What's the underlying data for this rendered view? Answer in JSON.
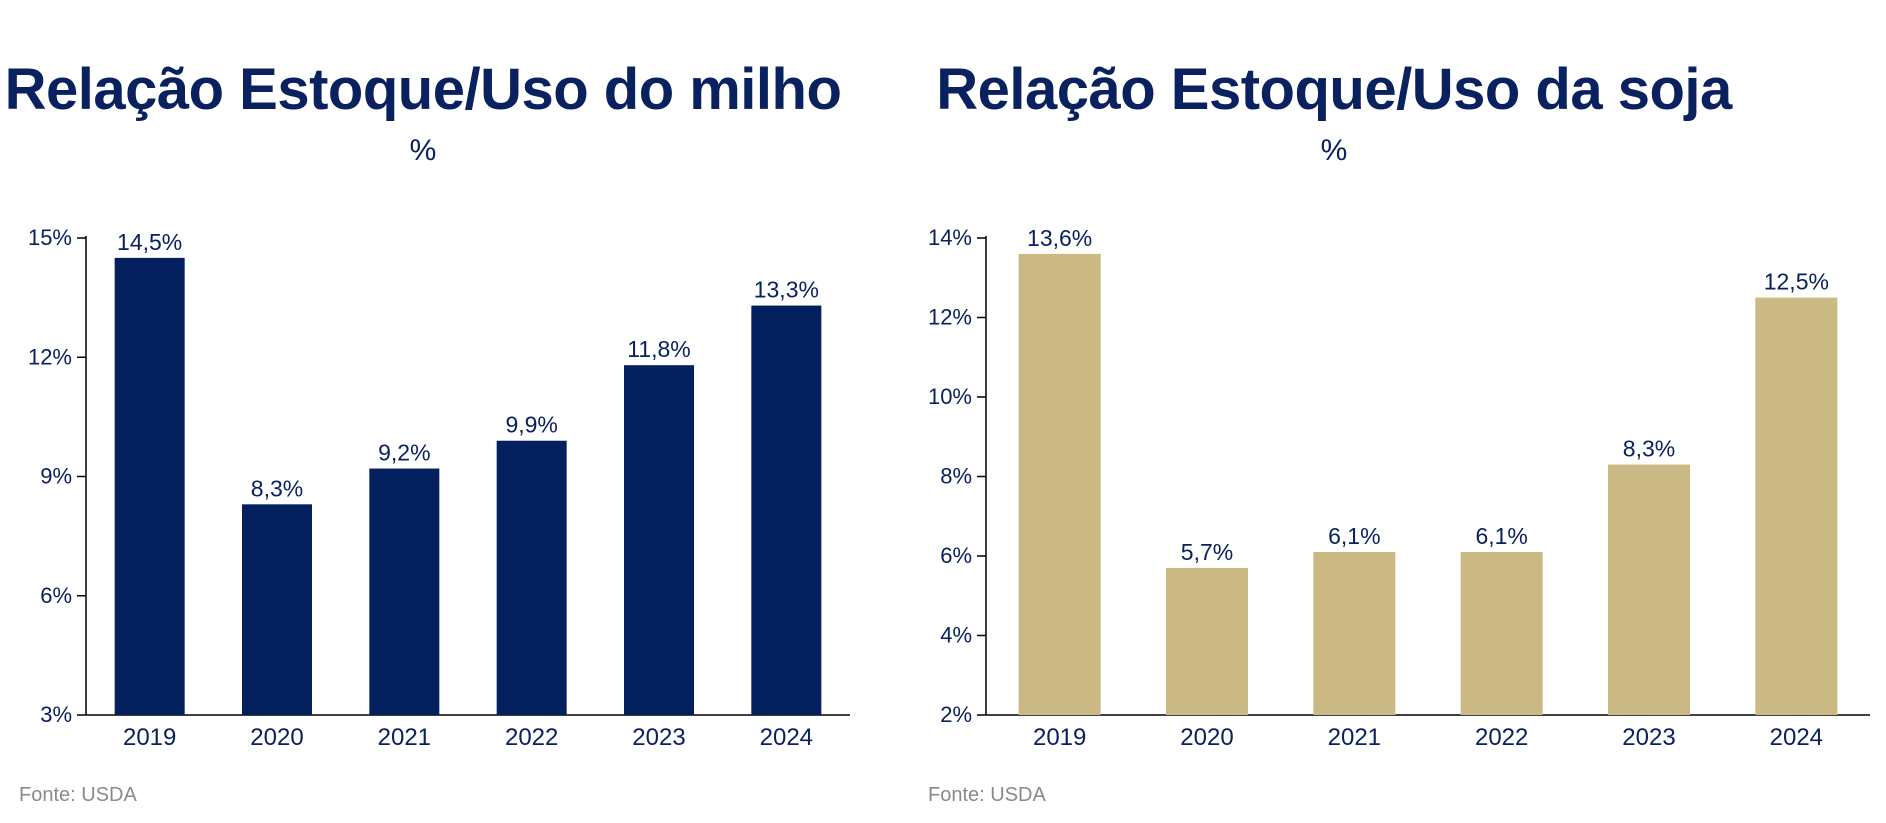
{
  "chart_data": [
    {
      "type": "bar",
      "title": "Relação Estoque/Uso do milho",
      "subtitle": "%",
      "categories": [
        "2019",
        "2020",
        "2021",
        "2022",
        "2023",
        "2024"
      ],
      "values": [
        14.5,
        8.3,
        9.2,
        9.9,
        11.8,
        13.3
      ],
      "data_labels": [
        "14,5%",
        "8,3%",
        "9,2%",
        "9,9%",
        "11,8%",
        "13,3%"
      ],
      "ylim": [
        3,
        15
      ],
      "yticks": [
        3,
        6,
        9,
        12,
        15
      ],
      "ytick_labels": [
        "3%",
        "6%",
        "9%",
        "12%",
        "15%"
      ],
      "grid": false,
      "bar_color": "#031f5e",
      "source": "Fonte: USDA"
    },
    {
      "type": "bar",
      "title": "Relação Estoque/Uso da soja",
      "subtitle": "%",
      "categories": [
        "2019",
        "2020",
        "2021",
        "2022",
        "2023",
        "2024"
      ],
      "values": [
        13.6,
        5.7,
        6.1,
        6.1,
        8.3,
        12.5
      ],
      "data_labels": [
        "13,6%",
        "5,7%",
        "6,1%",
        "6,1%",
        "8,3%",
        "12,5%"
      ],
      "ylim": [
        2,
        14
      ],
      "yticks": [
        2,
        4,
        6,
        8,
        10,
        12,
        14
      ],
      "ytick_labels": [
        "2%",
        "4%",
        "6%",
        "8%",
        "10%",
        "12%",
        "14%"
      ],
      "grid": false,
      "bar_color": "#cab982",
      "source": "Fonte: USDA"
    }
  ],
  "colors": {
    "title": "#0a2160",
    "axis": "#000000",
    "source": "#8a8a8a"
  }
}
